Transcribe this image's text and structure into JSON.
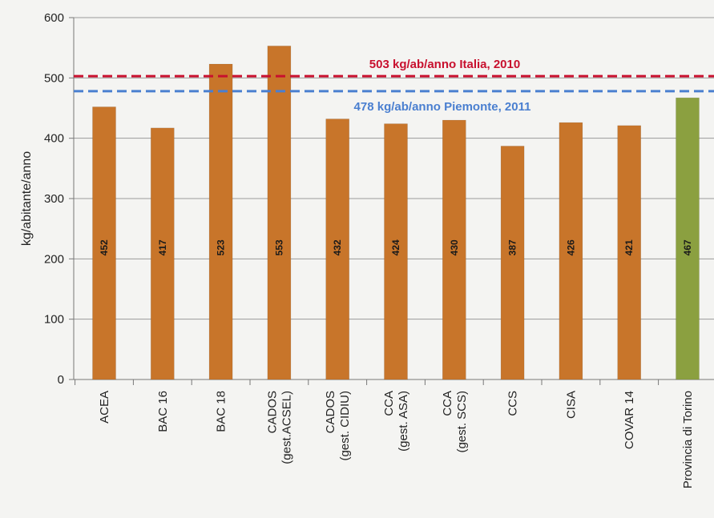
{
  "chart_data": {
    "type": "bar",
    "title": "",
    "xlabel": "",
    "ylabel": "kg/abitante/anno",
    "ylim": [
      0,
      600
    ],
    "yticks": [
      0,
      100,
      200,
      300,
      400,
      500,
      600
    ],
    "grid": true,
    "categories": [
      [
        "ACEA"
      ],
      [
        "BAC 16"
      ],
      [
        "BAC 18"
      ],
      [
        "CADOS",
        "(gest.ACSEL)"
      ],
      [
        "CADOS",
        "(gest. CIDIU)"
      ],
      [
        "CCA",
        "(gest. ASA)"
      ],
      [
        "CCA",
        "(gest. SCS)"
      ],
      [
        "CCS"
      ],
      [
        "CISA"
      ],
      [
        "COVAR 14"
      ],
      [
        "Provincia di Torino"
      ]
    ],
    "values": [
      452,
      417,
      523,
      553,
      432,
      424,
      430,
      387,
      426,
      421,
      467
    ],
    "value_labels": [
      "452",
      "417",
      "523",
      "553",
      "432",
      "424",
      "430",
      "387",
      "426",
      "421",
      "467"
    ],
    "bar_colors": [
      "#c8752a",
      "#c8752a",
      "#c8752a",
      "#c8752a",
      "#c8752a",
      "#c8752a",
      "#c8752a",
      "#c8752a",
      "#c8752a",
      "#c8752a",
      "#8ba040"
    ],
    "reference_lines": [
      {
        "value": 503,
        "label": "503 kg/ab/anno Italia, 2010",
        "color": "#c8102e"
      },
      {
        "value": 478,
        "label": "478 kg/ab/anno Piemonte, 2011",
        "color": "#4a7fd0"
      }
    ]
  }
}
